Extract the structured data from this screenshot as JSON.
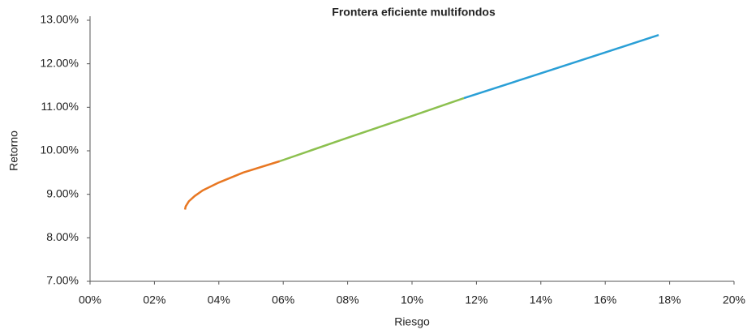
{
  "chart_data": {
    "type": "line",
    "title": "Frontera eficiente multifondos",
    "x_label": "Riesgo",
    "y_label": "Retorno",
    "xlim": [
      0,
      20
    ],
    "xticks": [
      {
        "value": 0,
        "label": "00%"
      },
      {
        "value": 2,
        "label": "02%"
      },
      {
        "value": 4,
        "label": "04%"
      },
      {
        "value": 6,
        "label": "06%"
      },
      {
        "value": 8,
        "label": "08%"
      },
      {
        "value": 10,
        "label": "10%"
      },
      {
        "value": 12,
        "label": "12%"
      },
      {
        "value": 14,
        "label": "14%"
      },
      {
        "value": 16,
        "label": "16%"
      },
      {
        "value": 18,
        "label": "18%"
      },
      {
        "value": 20,
        "label": "20%"
      }
    ],
    "ylim": [
      7,
      13
    ],
    "yticks": [
      {
        "value": 7,
        "label": "7.00%"
      },
      {
        "value": 8,
        "label": "8.00%"
      },
      {
        "value": 9,
        "label": "9.00%"
      },
      {
        "value": 10,
        "label": "10.00%"
      },
      {
        "value": 11,
        "label": "11.00%"
      },
      {
        "value": 12,
        "label": "12.00%"
      },
      {
        "value": 13,
        "label": "13.00%"
      }
    ],
    "grid": false,
    "series": [
      {
        "color": "#e87722",
        "x": [
          2.95,
          2.97,
          3.07,
          3.25,
          3.5,
          4.0,
          4.76,
          5.89
        ],
        "values": [
          8.65,
          8.72,
          8.84,
          8.96,
          9.09,
          9.27,
          9.5,
          9.76
        ]
      },
      {
        "color": "#8cc04f",
        "x": [
          5.89,
          8.0,
          10.0,
          11.61
        ],
        "values": [
          9.76,
          10.3,
          10.8,
          11.21
        ]
      },
      {
        "color": "#2a9fd6",
        "x": [
          11.61,
          14.0,
          16.0,
          17.66
        ],
        "values": [
          11.21,
          11.78,
          12.26,
          12.66
        ]
      }
    ]
  }
}
